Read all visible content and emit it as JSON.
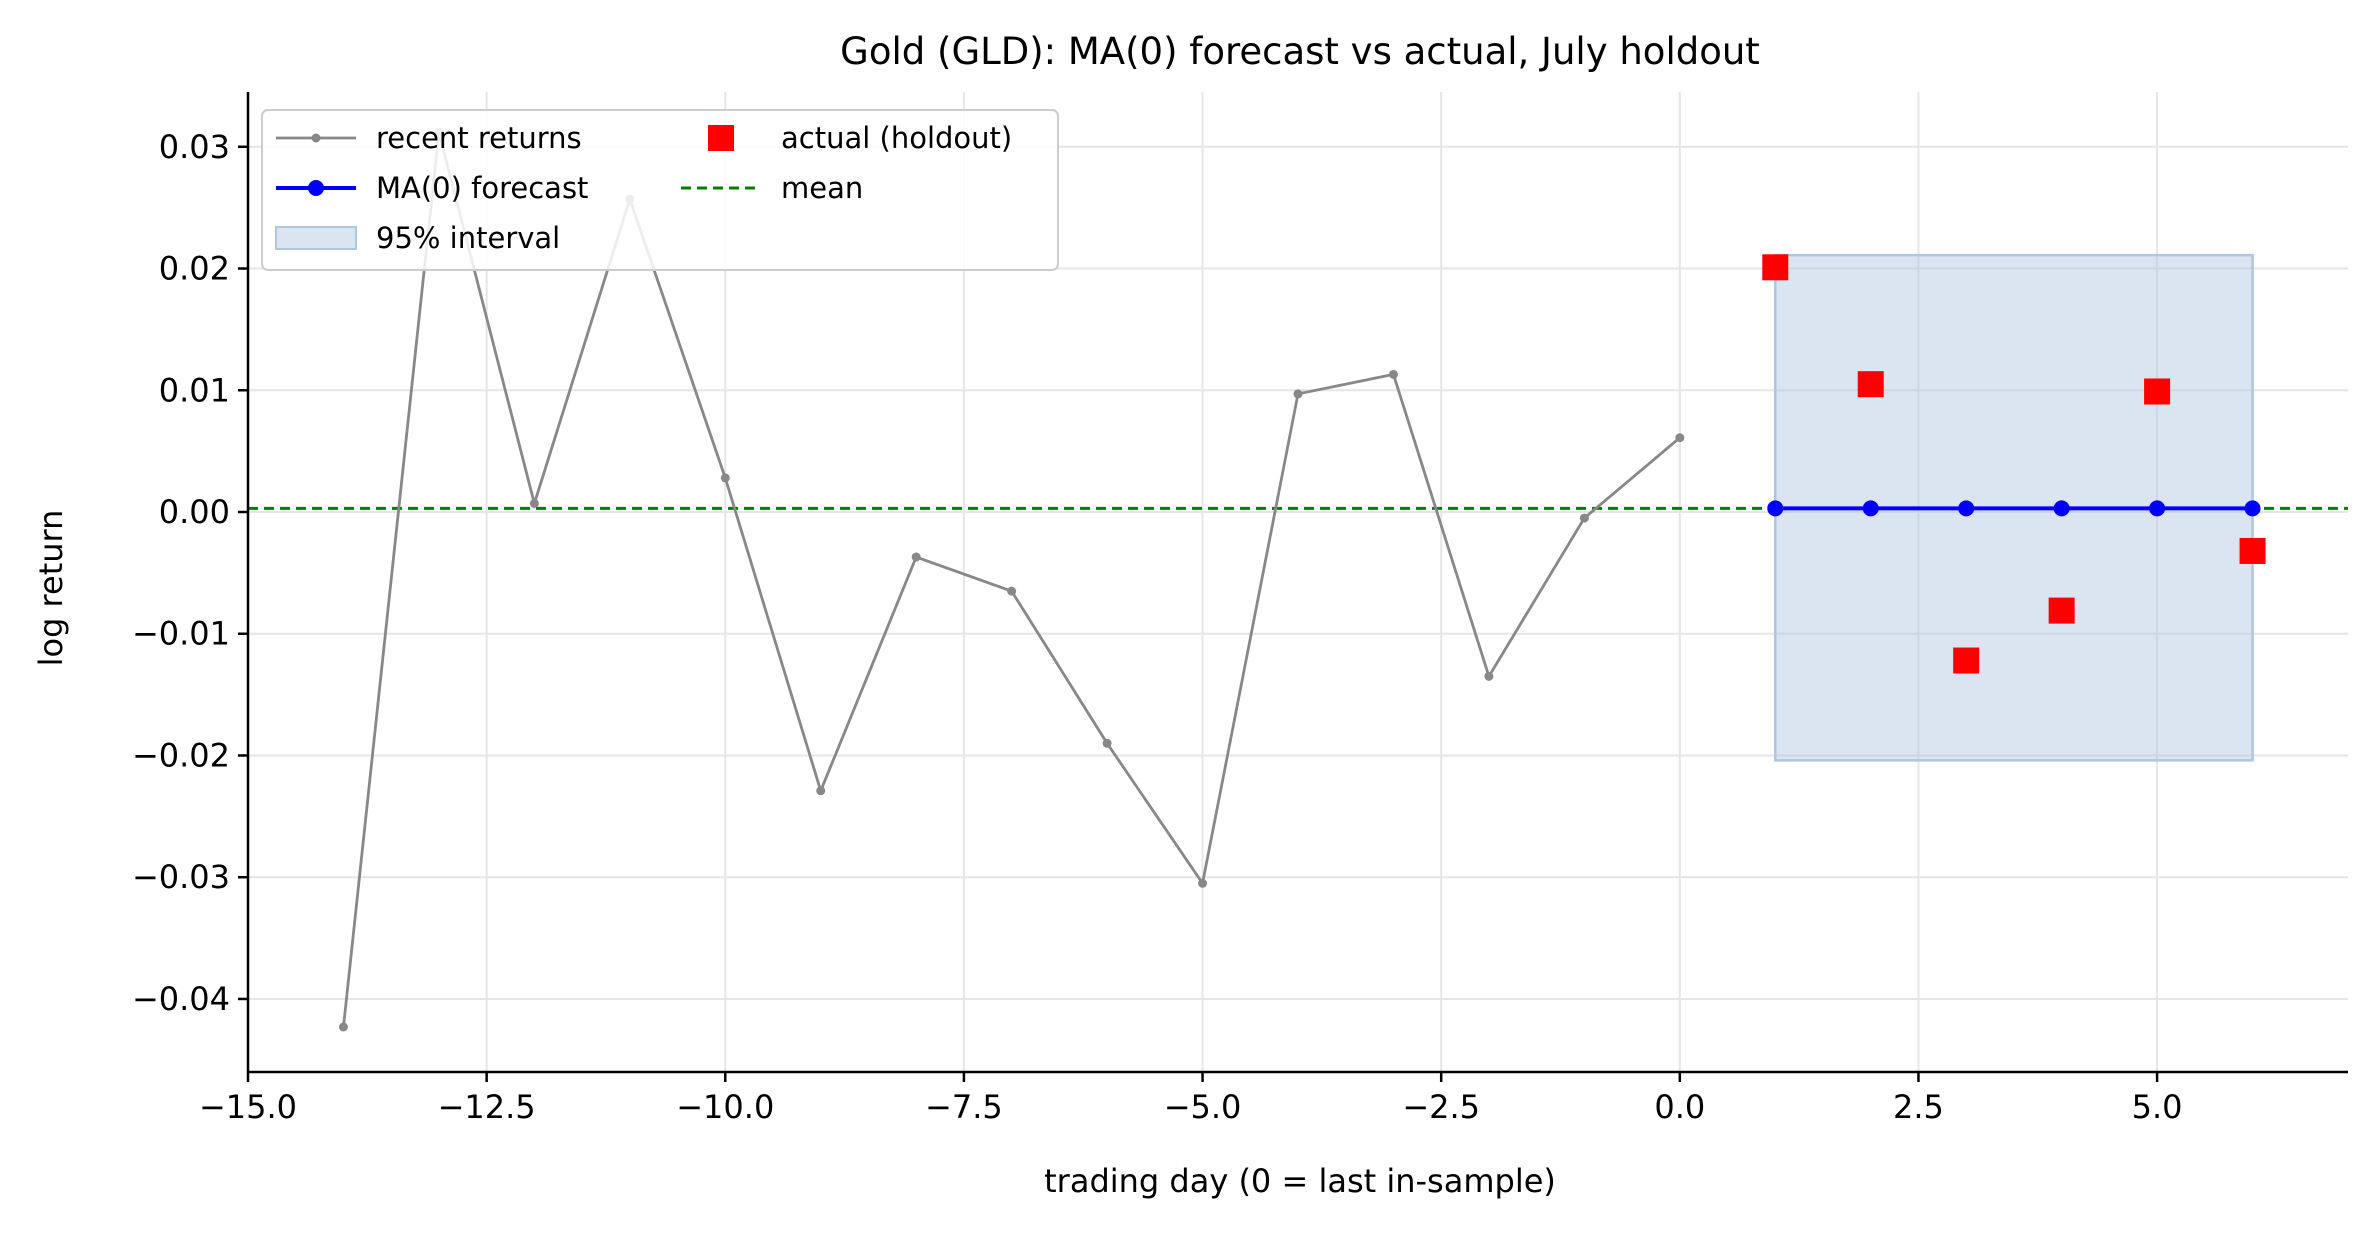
{
  "chart_data": {
    "type": "line",
    "title": "Gold (GLD): MA(0) forecast vs actual, July holdout",
    "xlabel": "trading day (0 = last in-sample)",
    "ylabel": "log return",
    "xlim": [
      -15.0,
      7.0
    ],
    "ylim": [
      -0.046,
      0.0345
    ],
    "x_ticks": [
      -15.0,
      -12.5,
      -10.0,
      -7.5,
      -5.0,
      -2.5,
      0.0,
      2.5,
      5.0
    ],
    "x_tick_labels": [
      "−15.0",
      "−12.5",
      "−10.0",
      "−7.5",
      "−5.0",
      "−2.5",
      "0.0",
      "2.5",
      "5.0"
    ],
    "y_ticks": [
      -0.04,
      -0.03,
      -0.02,
      -0.01,
      0.0,
      0.01,
      0.02,
      0.03
    ],
    "y_tick_labels": [
      "−0.04",
      "−0.03",
      "−0.02",
      "−0.01",
      "0.00",
      "0.01",
      "0.02",
      "0.03"
    ],
    "grid": true,
    "legend_position": "top-left",
    "series": [
      {
        "name": "recent returns",
        "kind": "line",
        "color": "#888888",
        "x": [
          -14,
          -13,
          -12,
          -11,
          -10,
          -9,
          -8,
          -7,
          -6,
          -5,
          -4,
          -3,
          -2,
          -1,
          0
        ],
        "y": [
          -0.0423,
          0.0312,
          0.0007,
          0.0257,
          0.0028,
          -0.0229,
          -0.0037,
          -0.0065,
          -0.019,
          -0.0305,
          0.0097,
          0.0113,
          -0.0135,
          -0.0005,
          0.0061
        ]
      },
      {
        "name": "MA(0) forecast",
        "kind": "line",
        "color": "#0000ff",
        "x": [
          1,
          2,
          3,
          4,
          5,
          6
        ],
        "y": [
          0.0003,
          0.0003,
          0.0003,
          0.0003,
          0.0003,
          0.0003
        ]
      },
      {
        "name": "95% interval",
        "kind": "band",
        "color": "#aec6e0",
        "x": [
          1,
          6
        ],
        "lower": -0.0204,
        "upper": 0.0211
      },
      {
        "name": "actual (holdout)",
        "kind": "scatter",
        "color": "#ff0000",
        "x": [
          1,
          2,
          3,
          4,
          5,
          6
        ],
        "y": [
          0.0201,
          0.0105,
          -0.0122,
          -0.0081,
          0.0099,
          -0.0032
        ]
      },
      {
        "name": "mean",
        "kind": "hline",
        "color": "#008000",
        "y": 0.0003
      }
    ]
  }
}
